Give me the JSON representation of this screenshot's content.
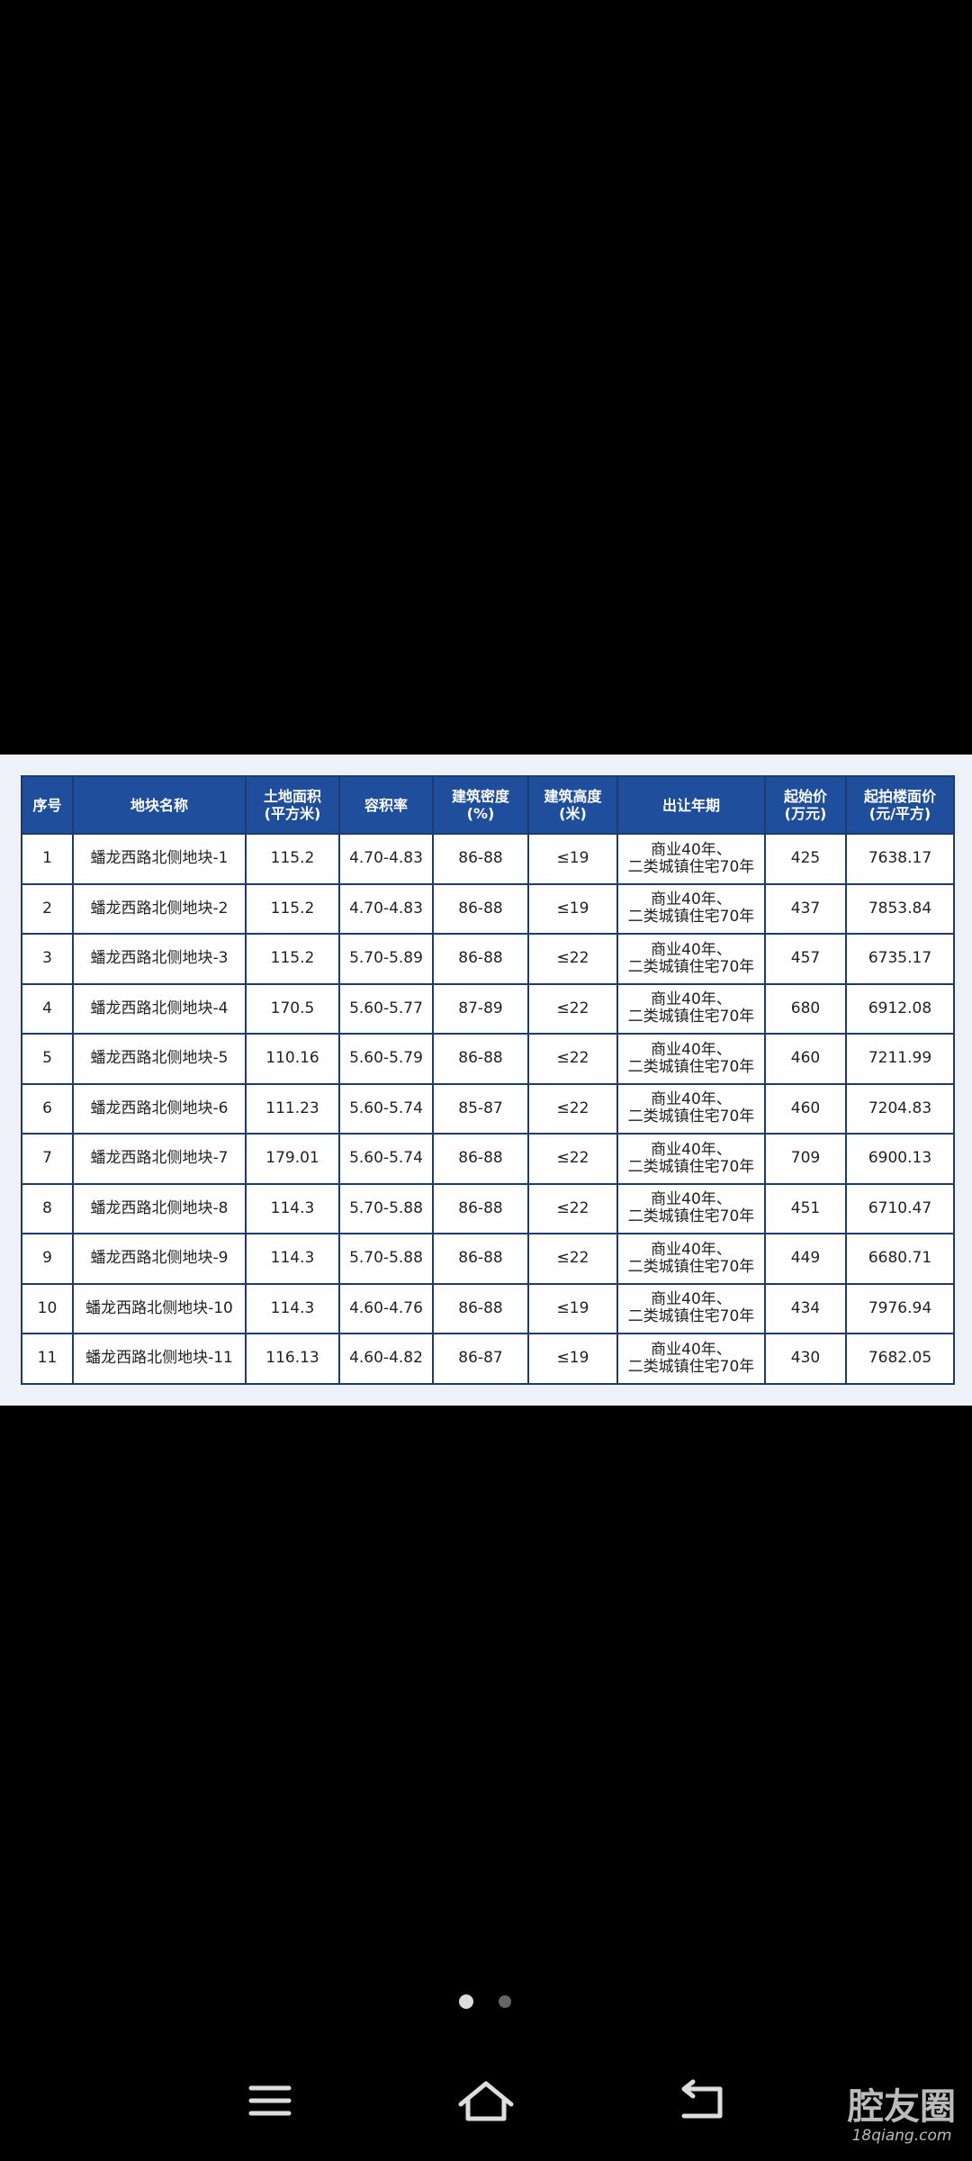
{
  "table": {
    "header": [
      [
        "序号"
      ],
      [
        "地块名称"
      ],
      [
        "土地面积",
        "(平方米)"
      ],
      [
        "容积率"
      ],
      [
        "建筑密度",
        "(%)"
      ],
      [
        "建筑高度",
        "(米)"
      ],
      [
        "出让年期"
      ],
      [
        "起始价",
        "(万元)"
      ],
      [
        "起拍楼面价",
        "(元/平方)"
      ]
    ],
    "rows": [
      [
        "1",
        "蟠龙西路北侧地块-1",
        "115.2",
        "4.70-4.83",
        "86-88",
        "≤19",
        [
          "商业40年、",
          "二类城镇住宅70年"
        ],
        "425",
        "7638.17"
      ],
      [
        "2",
        "蟠龙西路北侧地块-2",
        "115.2",
        "4.70-4.83",
        "86-88",
        "≤19",
        [
          "商业40年、",
          "二类城镇住宅70年"
        ],
        "437",
        "7853.84"
      ],
      [
        "3",
        "蟠龙西路北侧地块-3",
        "115.2",
        "5.70-5.89",
        "86-88",
        "≤22",
        [
          "商业40年、",
          "二类城镇住宅70年"
        ],
        "457",
        "6735.17"
      ],
      [
        "4",
        "蟠龙西路北侧地块-4",
        "170.5",
        "5.60-5.77",
        "87-89",
        "≤22",
        [
          "商业40年、",
          "二类城镇住宅70年"
        ],
        "680",
        "6912.08"
      ],
      [
        "5",
        "蟠龙西路北侧地块-5",
        "110.16",
        "5.60-5.79",
        "86-88",
        "≤22",
        [
          "商业40年、",
          "二类城镇住宅70年"
        ],
        "460",
        "7211.99"
      ],
      [
        "6",
        "蟠龙西路北侧地块-6",
        "111.23",
        "5.60-5.74",
        "85-87",
        "≤22",
        [
          "商业40年、",
          "二类城镇住宅70年"
        ],
        "460",
        "7204.83"
      ],
      [
        "7",
        "蟠龙西路北侧地块-7",
        "179.01",
        "5.60-5.74",
        "86-88",
        "≤22",
        [
          "商业40年、",
          "二类城镇住宅70年"
        ],
        "709",
        "6900.13"
      ],
      [
        "8",
        "蟠龙西路北侧地块-8",
        "114.3",
        "5.70-5.88",
        "86-88",
        "≤22",
        [
          "商业40年、",
          "二类城镇住宅70年"
        ],
        "451",
        "6710.47"
      ],
      [
        "9",
        "蟠龙西路北侧地块-9",
        "114.3",
        "5.70-5.88",
        "86-88",
        "≤22",
        [
          "商业40年、",
          "二类城镇住宅70年"
        ],
        "449",
        "6680.71"
      ],
      [
        "10",
        "蟠龙西路北侧地块-10",
        "114.3",
        "4.60-4.76",
        "86-88",
        "≤19",
        [
          "商业40年、",
          "二类城镇住宅70年"
        ],
        "434",
        "7976.94"
      ],
      [
        "11",
        "蟠龙西路北侧地块-11",
        "116.13",
        "4.60-4.82",
        "86-87",
        "≤19",
        [
          "商业40年、",
          "二类城镇住宅70年"
        ],
        "430",
        "7682.05"
      ]
    ]
  },
  "watermark": {
    "name": "腔友圈",
    "site": "18qiang.com"
  }
}
